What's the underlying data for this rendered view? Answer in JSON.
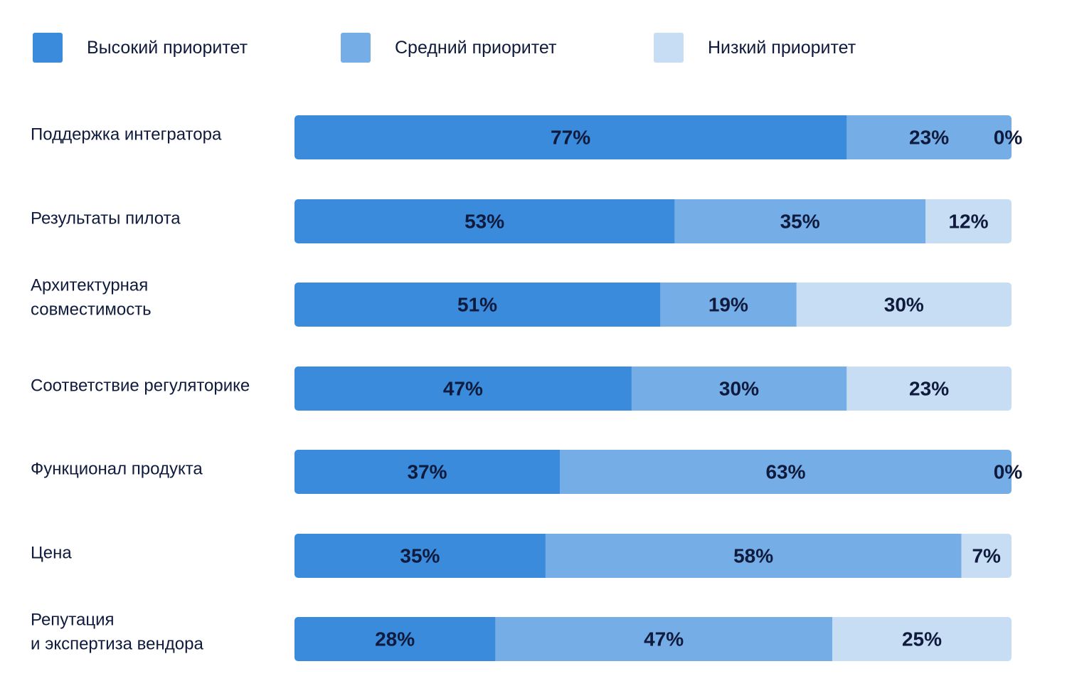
{
  "chart_data": {
    "type": "bar",
    "orientation": "horizontal",
    "stacked": true,
    "unit": "%",
    "legend_position": "top",
    "grid": false,
    "xlim": [
      0,
      100
    ],
    "categories": [
      [
        "Поддержка интегратора"
      ],
      [
        "Результаты пилота"
      ],
      [
        "Архитектурная",
        "совместимость"
      ],
      [
        "Соответствие регуляторике"
      ],
      [
        "Функционал продукта"
      ],
      [
        "Цена"
      ],
      [
        "Репутация",
        "и экспертиза вендора"
      ]
    ],
    "series": [
      {
        "name": "Высокий приоритет",
        "color": "#3a8bdb",
        "values": [
          77,
          53,
          51,
          47,
          37,
          35,
          28
        ]
      },
      {
        "name": "Средний приоритет",
        "color": "#75ade6",
        "values": [
          23,
          35,
          19,
          30,
          63,
          58,
          47
        ]
      },
      {
        "name": "Низкий приоритет",
        "color": "#c6ddf4",
        "values": [
          0,
          12,
          30,
          23,
          0,
          7,
          25
        ]
      }
    ],
    "labels": [
      [
        "77%",
        "23%",
        "0%"
      ],
      [
        "53%",
        "35%",
        "12%"
      ],
      [
        "51%",
        "19%",
        "30%"
      ],
      [
        "47%",
        "30%",
        "23%"
      ],
      [
        "37%",
        "63%",
        "0%"
      ],
      [
        "35%",
        "58%",
        "7%"
      ],
      [
        "28%",
        "47%",
        "25%"
      ]
    ]
  }
}
